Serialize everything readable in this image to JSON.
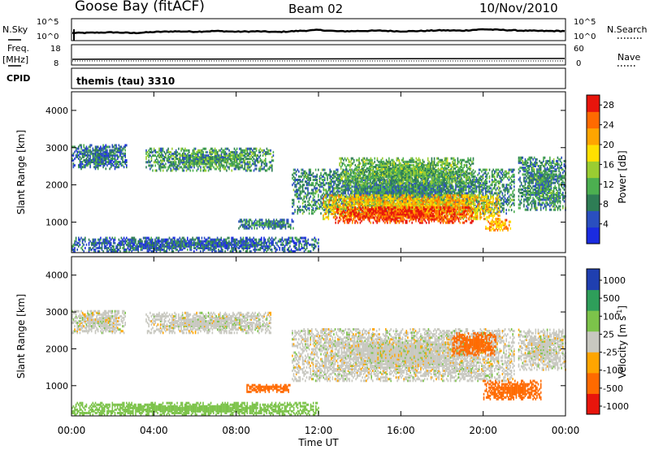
{
  "header": {
    "station": "Goose Bay (fitACF)",
    "beam": "Beam 02",
    "date": "10/Nov/2010"
  },
  "side_labels": {
    "nsky": "N.Sky",
    "freq_top": "Freq.",
    "freq_unit": "[MHz]",
    "cpid": "CPID",
    "nsearch": "N.Search",
    "nave": "Nave"
  },
  "cpid_text": "themis (tau) 3310",
  "colors": {
    "power": [
      "#1a2be0",
      "#2a4fbf",
      "#2e7d55",
      "#4caf50",
      "#9acd32",
      "#ffe000",
      "#ffa500",
      "#ff6a00",
      "#e8150c"
    ],
    "velocity": [
      "#e8150c",
      "#ff6a00",
      "#ffa500",
      "#c8c8c0",
      "#7cc34a",
      "#2e9e5a",
      "#1f3fb0"
    ]
  },
  "chart_data": [
    {
      "type": "line",
      "title": "Goose Bay (fitACF) Beam 02 10/Nov/2010",
      "panel": "noise",
      "y_left_ticks": [
        "10^5",
        "10^0"
      ],
      "y_right_ticks": [
        "10^5",
        "10^0"
      ],
      "series": [
        {
          "name": "N.Sky",
          "style": "solid"
        },
        {
          "name": "N.Search",
          "style": "dotted"
        }
      ],
      "x_hours": [
        0,
        1,
        2,
        3,
        4,
        5,
        6,
        7,
        8,
        9,
        10,
        11,
        12,
        13,
        14,
        15,
        16,
        17,
        18,
        19,
        20,
        21,
        22,
        23,
        24
      ],
      "nsky_level": [
        2.0,
        2.1,
        2.2,
        2.0,
        2.3,
        2.5,
        2.4,
        2.6,
        2.4,
        2.5,
        2.3,
        2.6,
        2.9,
        2.5,
        2.6,
        2.7,
        2.5,
        2.6,
        2.8,
        2.7,
        3.1,
        2.9,
        2.7,
        2.6,
        2.6
      ]
    },
    {
      "type": "line",
      "panel": "frequency",
      "y_left_ticks": [
        "18",
        "8"
      ],
      "y_right_ticks": [
        "60",
        "0"
      ],
      "series": [
        {
          "name": "Freq.",
          "style": "solid",
          "value_mhz": 10.5
        },
        {
          "name": "Nave",
          "style": "dotted"
        }
      ]
    },
    {
      "type": "heatmap",
      "panel": "power",
      "ylabel": "Slant Range [km]",
      "xlabel": "Time UT",
      "xlim": [
        0,
        24
      ],
      "ylim": [
        180,
        4500
      ],
      "y_ticks": [
        "1000",
        "2000",
        "3000",
        "4000"
      ],
      "x_ticks": [
        "00:00",
        "04:00",
        "08:00",
        "12:00",
        "16:00",
        "20:00",
        "00:00"
      ],
      "colorbar_label": "Power [dB]",
      "colorbar_ticks": [
        "4",
        "8",
        "12",
        "16",
        "20",
        "24",
        "28"
      ],
      "colorbar_range": [
        0,
        30
      ],
      "patches": [
        {
          "t0": 0.0,
          "t1": 2.7,
          "r0": 2400,
          "r1": 3050,
          "level": 7
        },
        {
          "t0": 3.6,
          "t1": 9.8,
          "r0": 2350,
          "r1": 2950,
          "level": 10
        },
        {
          "t0": 0.0,
          "t1": 12.0,
          "r0": 180,
          "r1": 550,
          "level": 6
        },
        {
          "t0": 8.1,
          "t1": 10.8,
          "r0": 800,
          "r1": 1050,
          "level": 8
        },
        {
          "t0": 10.7,
          "t1": 21.5,
          "r0": 1200,
          "r1": 2400,
          "level": 9
        },
        {
          "t0": 12.2,
          "t1": 20.8,
          "r0": 1050,
          "r1": 1700,
          "level": 20
        },
        {
          "t0": 12.8,
          "t1": 19.5,
          "r0": 950,
          "r1": 1400,
          "level": 27
        },
        {
          "t0": 13.0,
          "t1": 19.5,
          "r0": 2000,
          "r1": 2700,
          "level": 12
        },
        {
          "t0": 20.1,
          "t1": 21.3,
          "r0": 750,
          "r1": 1050,
          "level": 22
        },
        {
          "t0": 21.7,
          "t1": 24.0,
          "r0": 1300,
          "r1": 2700,
          "level": 9
        }
      ]
    },
    {
      "type": "heatmap",
      "panel": "velocity",
      "ylabel": "Slant Range [km]",
      "xlabel": "Time UT",
      "xlim": [
        0,
        24
      ],
      "ylim": [
        180,
        4500
      ],
      "y_ticks": [
        "1000",
        "2000",
        "3000",
        "4000"
      ],
      "x_ticks": [
        "00:00",
        "04:00",
        "08:00",
        "12:00",
        "16:00",
        "20:00",
        "00:00"
      ],
      "colorbar_label": "Velocity [m s^-1]",
      "colorbar_ticks": [
        "1000",
        "500",
        "100",
        "25",
        "-25",
        "-100",
        "-500",
        "-1000"
      ],
      "patches": [
        {
          "t0": 0.0,
          "t1": 2.6,
          "r0": 2400,
          "r1": 3000,
          "vel": 0
        },
        {
          "t0": 3.6,
          "t1": 9.7,
          "r0": 2400,
          "r1": 2950,
          "vel": 0
        },
        {
          "t0": 0.0,
          "t1": 12.0,
          "r0": 180,
          "r1": 500,
          "vel": 60
        },
        {
          "t0": 8.5,
          "t1": 10.6,
          "r0": 800,
          "r1": 1000,
          "vel": -200
        },
        {
          "t0": 10.7,
          "t1": 21.5,
          "r0": 1100,
          "r1": 2500,
          "vel": 0
        },
        {
          "t0": 18.5,
          "t1": 20.6,
          "r0": 1800,
          "r1": 2400,
          "vel": -300
        },
        {
          "t0": 20.0,
          "t1": 22.8,
          "r0": 600,
          "r1": 1100,
          "vel": -350
        },
        {
          "t0": 21.7,
          "t1": 24.0,
          "r0": 1400,
          "r1": 2500,
          "vel": 0
        }
      ]
    }
  ]
}
